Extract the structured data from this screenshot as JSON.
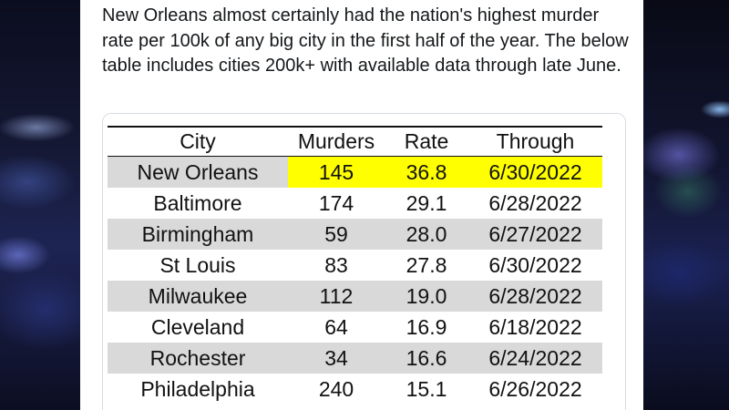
{
  "tweet": {
    "text": "New Orleans almost certainly had the nation's highest murder rate per 100k of any big city in the first half of the year. The below table includes cities 200k+ with available data through late June."
  },
  "table": {
    "columns": [
      "City",
      "Murders",
      "Rate",
      "Through"
    ],
    "rows": [
      {
        "city": "New Orleans",
        "murders": "145",
        "rate": "36.8",
        "through": "6/30/2022"
      },
      {
        "city": "Baltimore",
        "murders": "174",
        "rate": "29.1",
        "through": "6/28/2022"
      },
      {
        "city": "Birmingham",
        "murders": "59",
        "rate": "28.0",
        "through": "6/27/2022"
      },
      {
        "city": "St Louis",
        "murders": "83",
        "rate": "27.8",
        "through": "6/30/2022"
      },
      {
        "city": "Milwaukee",
        "murders": "112",
        "rate": "19.0",
        "through": "6/28/2022"
      },
      {
        "city": "Cleveland",
        "murders": "64",
        "rate": "16.9",
        "through": "6/18/2022"
      },
      {
        "city": "Rochester",
        "murders": "34",
        "rate": "16.6",
        "through": "6/24/2022"
      },
      {
        "city": "Philadelphia",
        "murders": "240",
        "rate": "15.1",
        "through": "6/26/2022"
      }
    ],
    "highlight_color": "#ffff00",
    "shade_color": "#d9d9d9"
  }
}
